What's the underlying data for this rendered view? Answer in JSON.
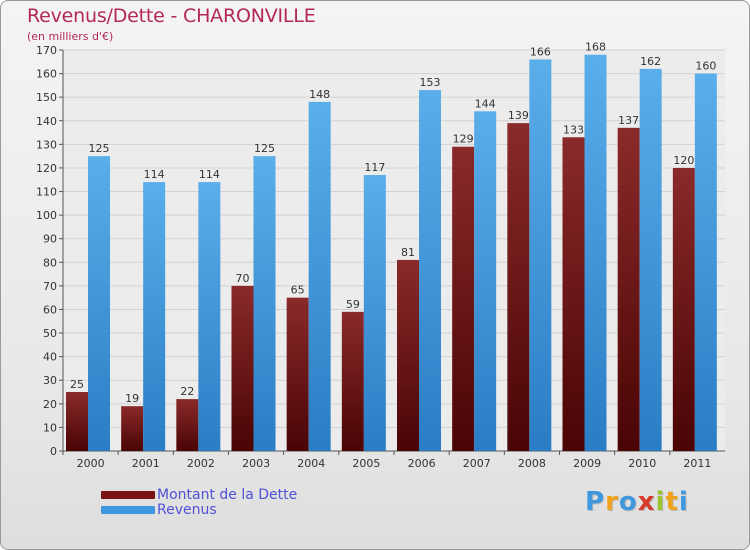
{
  "chart_data": {
    "type": "bar",
    "title": "Revenus/Dette - CHARONVILLE",
    "subtitle": "(en milliers d'€)",
    "categories": [
      "2000",
      "2001",
      "2002",
      "2003",
      "2004",
      "2005",
      "2006",
      "2007",
      "2008",
      "2009",
      "2010",
      "2011"
    ],
    "series": [
      {
        "name": "Montant de la Dette",
        "color": "#7a1414",
        "values": [
          25,
          19,
          22,
          70,
          65,
          59,
          81,
          129,
          139,
          133,
          137,
          120
        ]
      },
      {
        "name": "Revenus",
        "color": "#3f97de",
        "values": [
          125,
          114,
          114,
          125,
          148,
          117,
          153,
          144,
          166,
          168,
          162,
          160
        ]
      }
    ],
    "ylim": [
      0,
      170
    ],
    "yticks": [
      0,
      10,
      20,
      30,
      40,
      50,
      60,
      70,
      80,
      90,
      100,
      110,
      120,
      130,
      140,
      150,
      160,
      170
    ],
    "grid": true,
    "legend_position": "bottom-left"
  },
  "brand": {
    "letters": [
      "P",
      "r",
      "o",
      "x",
      "i",
      "t",
      "i"
    ],
    "colors": [
      "#3f97de",
      "#f0a21a",
      "#3f97de",
      "#d63a2a",
      "#9cc431",
      "#f0a21a",
      "#3f97de"
    ]
  }
}
